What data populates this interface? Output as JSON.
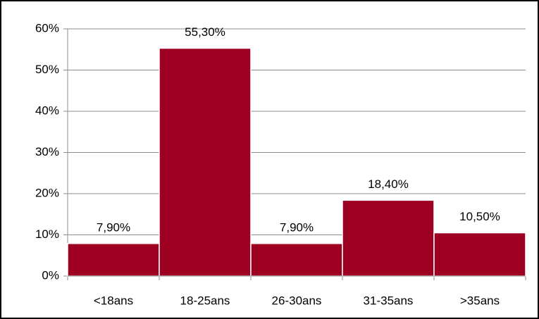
{
  "chart_data": {
    "type": "bar",
    "categories": [
      "<18ans",
      "18-25ans",
      "26-30ans",
      "31-35ans",
      ">35ans"
    ],
    "values": [
      7.9,
      55.3,
      7.9,
      18.4,
      10.5
    ],
    "value_labels": [
      "7,90%",
      "55,30%",
      "7,90%",
      "18,40%",
      "10,50%"
    ],
    "color": "#9e0022",
    "ylim": [
      0,
      60
    ],
    "yticks": [
      {
        "value": 0,
        "label": "0%"
      },
      {
        "value": 10,
        "label": "10%"
      },
      {
        "value": 20,
        "label": "20%"
      },
      {
        "value": 30,
        "label": "30%"
      },
      {
        "value": 40,
        "label": "40%"
      },
      {
        "value": 50,
        "label": "50%"
      },
      {
        "value": 60,
        "label": "60%"
      }
    ],
    "grid": true
  }
}
